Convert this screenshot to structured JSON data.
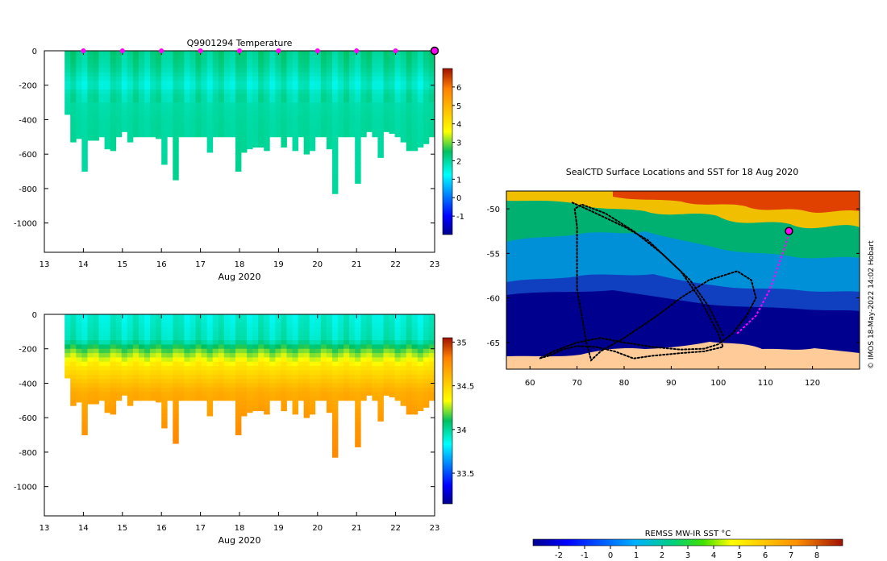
{
  "chart_data": [
    {
      "type": "heatmap",
      "title": "Q9901294  Temperature",
      "xlabel": "Aug 2020",
      "ylabel": "",
      "xlim": [
        13,
        23
      ],
      "ylim": [
        -1170,
        0
      ],
      "x_ticks": [
        "13",
        "14",
        "15",
        "16",
        "17",
        "18",
        "19",
        "20",
        "21",
        "22",
        "23"
      ],
      "y_ticks": [
        "0",
        "-200",
        "-400",
        "-600",
        "-800",
        "-1000"
      ],
      "colorbar": {
        "min": -2,
        "max": 7,
        "ticks": [
          "-1",
          "0",
          "1",
          "2",
          "3",
          "4",
          "5",
          "6"
        ]
      },
      "surface_markers_day": [
        14,
        15,
        16,
        17,
        18,
        19,
        20,
        21,
        22
      ],
      "last_marker_day": 23,
      "profile_start_day": 13.52,
      "profile_bottoms_m": [
        -370,
        -530,
        -510,
        -700,
        -520,
        -520,
        -500,
        -570,
        -580,
        -500,
        -470,
        -530,
        -500,
        -500,
        -500,
        -500,
        -510,
        -660,
        -500,
        -750,
        -500,
        -500,
        -500,
        -500,
        -500,
        -590,
        -500,
        -500,
        -500,
        -500,
        -700,
        -590,
        -570,
        -560,
        -560,
        -580,
        -500,
        -500,
        -560,
        -500,
        -580,
        -500,
        -600,
        -580,
        -500,
        -500,
        -570,
        -830,
        -500,
        -500,
        -500,
        -770,
        -500,
        -470,
        -500,
        -620,
        -470,
        -480,
        -500,
        -530,
        -580,
        -580,
        -560,
        -540,
        -500
      ],
      "profile_values": {
        "depth_m": [
          0,
          -100,
          -200,
          -250,
          -400,
          -800
        ],
        "value": [
          2.2,
          2.0,
          1.6,
          1.9,
          2.0,
          2.1
        ]
      }
    },
    {
      "type": "heatmap",
      "title": "",
      "xlabel": "Aug 2020",
      "ylabel": "",
      "xlim": [
        13,
        23
      ],
      "ylim": [
        -1170,
        0
      ],
      "x_ticks": [
        "13",
        "14",
        "15",
        "16",
        "17",
        "18",
        "19",
        "20",
        "21",
        "22",
        "23"
      ],
      "y_ticks": [
        "0",
        "-200",
        "-400",
        "-600",
        "-800",
        "-1000"
      ],
      "colorbar": {
        "min": 33.15,
        "max": 35.05,
        "ticks": [
          "33.5",
          "34",
          "34.5",
          "35"
        ]
      },
      "profile_values": {
        "depth_m": [
          0,
          -150,
          -200,
          -300,
          -450,
          -650,
          -900
        ],
        "value": [
          33.9,
          33.95,
          34.15,
          34.42,
          34.65,
          34.75,
          34.82
        ]
      }
    },
    {
      "type": "heatmap",
      "title": "SealCTD Surface Locations and SST for 18 Aug 2020",
      "xlabel": "",
      "ylabel": "",
      "xlim": [
        55,
        130
      ],
      "ylim": [
        -68,
        -48
      ],
      "x_ticks": [
        "60",
        "70",
        "80",
        "90",
        "100",
        "110",
        "120"
      ],
      "y_ticks": [
        "-50",
        "-55",
        "-60",
        "-65"
      ],
      "colorbar": {
        "label": "REMSS MW-IR SST °C",
        "min": -3,
        "max": 9,
        "ticks": [
          "-2",
          "-1",
          "0",
          "1",
          "2",
          "3",
          "4",
          "5",
          "6",
          "7",
          "8"
        ]
      },
      "track": [
        [
          69,
          -49.3
        ],
        [
          72,
          -50
        ],
        [
          76,
          -51
        ],
        [
          80,
          -52
        ],
        [
          85,
          -53.5
        ],
        [
          88,
          -55
        ],
        [
          92,
          -57
        ],
        [
          96,
          -60
        ],
        [
          100,
          -64
        ],
        [
          101,
          -65.5
        ],
        [
          97,
          -66
        ],
        [
          92,
          -66.2
        ],
        [
          86,
          -66.5
        ],
        [
          82,
          -66.8
        ],
        [
          78,
          -66
        ],
        [
          74,
          -65.5
        ],
        [
          70,
          -65.4
        ],
        [
          67,
          -65.8
        ],
        [
          64,
          -66.5
        ],
        [
          62,
          -66.8
        ],
        [
          65,
          -66
        ],
        [
          70,
          -65
        ],
        [
          75,
          -64.5
        ],
        [
          80,
          -65
        ],
        [
          86,
          -65.5
        ],
        [
          92,
          -65.8
        ],
        [
          97,
          -65.7
        ],
        [
          100,
          -65.2
        ],
        [
          103,
          -64
        ],
        [
          106,
          -62
        ],
        [
          108,
          -60
        ],
        [
          107,
          -58
        ],
        [
          104,
          -57
        ],
        [
          98,
          -58
        ],
        [
          92,
          -60
        ],
        [
          87,
          -62
        ],
        [
          80,
          -64.5
        ],
        [
          75,
          -66
        ],
        [
          73,
          -67
        ],
        [
          72,
          -65
        ],
        [
          71,
          -62
        ],
        [
          70,
          -59
        ],
        [
          70,
          -55
        ],
        [
          70,
          -52
        ],
        [
          69.5,
          -50
        ],
        [
          71,
          -49.5
        ],
        [
          76,
          -50.5
        ],
        [
          82,
          -52.5
        ],
        [
          88,
          -55
        ],
        [
          94,
          -58
        ],
        [
          98,
          -61
        ],
        [
          101,
          -64.2
        ]
      ],
      "recent_track": [
        [
          104,
          -64
        ],
        [
          108,
          -62
        ],
        [
          111,
          -59
        ],
        [
          113,
          -56
        ],
        [
          114.6,
          -53.5
        ],
        [
          115,
          -52.5
        ]
      ],
      "last_position": [
        115,
        -52.5
      ],
      "copyright": "© IMOS 18-May-2022 14:02 Hobart"
    }
  ]
}
